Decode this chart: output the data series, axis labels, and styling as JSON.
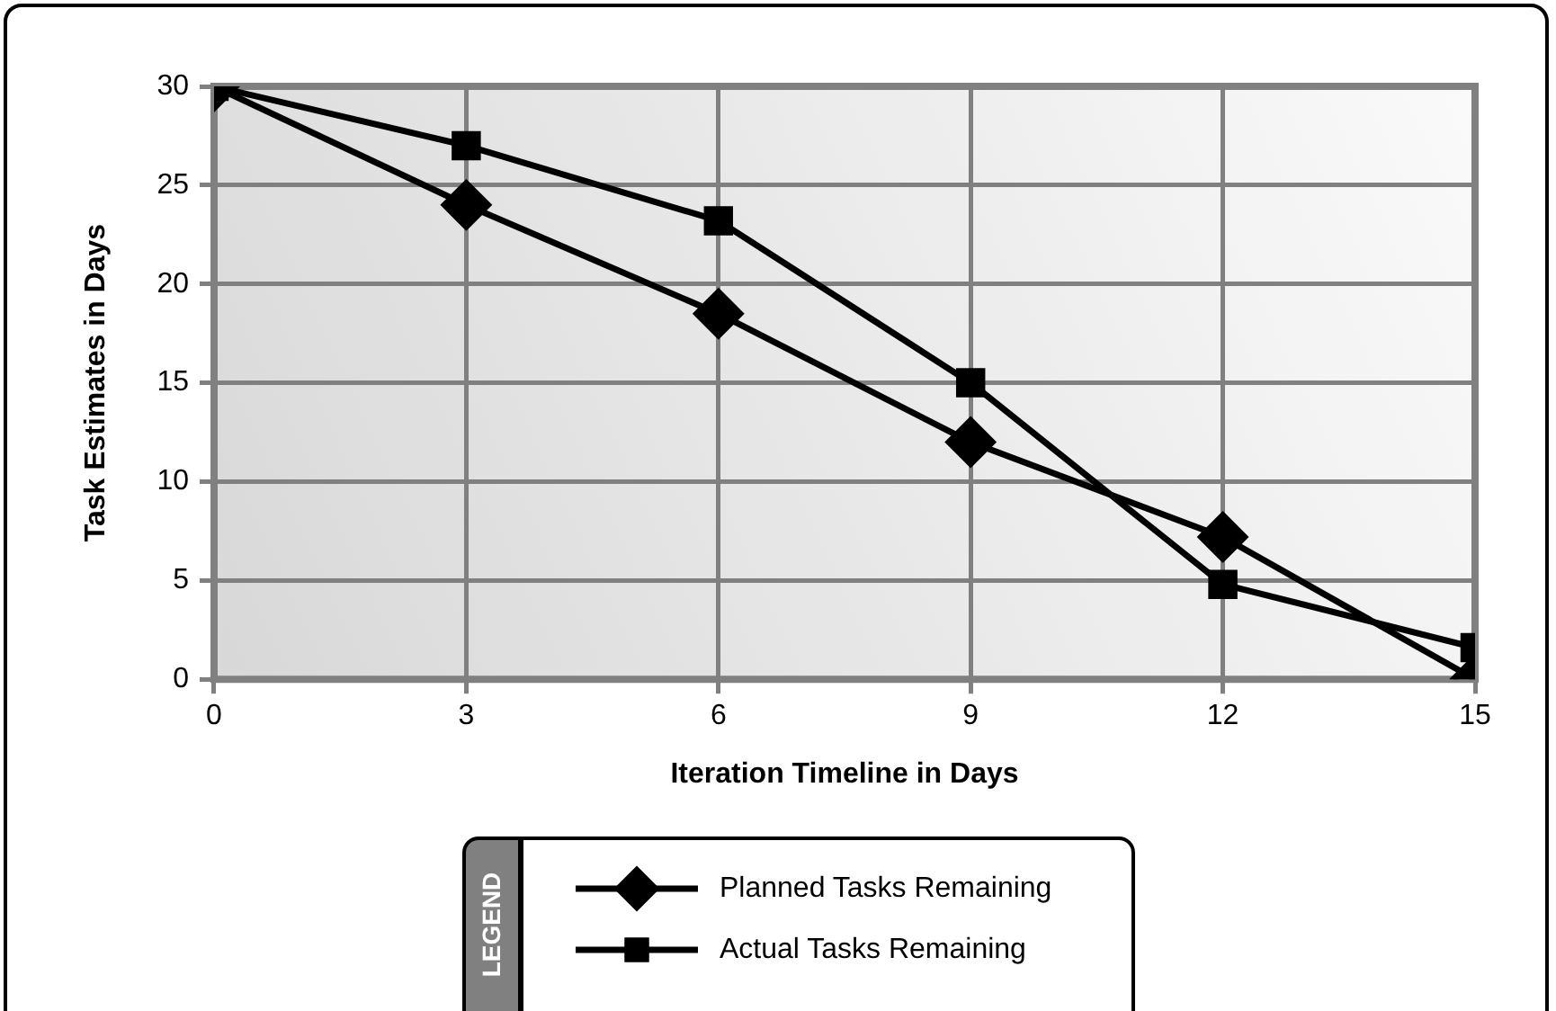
{
  "chart_data": {
    "type": "line",
    "xlabel": "Iteration Timeline in Days",
    "ylabel": "Task Estimates in Days",
    "legend_title": "LEGEND",
    "x": [
      0,
      3,
      6,
      9,
      12,
      15
    ],
    "series": [
      {
        "name": "Planned Tasks Remaining",
        "color": "#000000",
        "marker": "diamond",
        "values": [
          30,
          24,
          18.5,
          12,
          7.2,
          0
        ]
      },
      {
        "name": "Actual Tasks Remaining",
        "color": "#000000",
        "marker": "square",
        "values": [
          30,
          27,
          23.2,
          15,
          4.8,
          1.6
        ]
      }
    ],
    "xlim": [
      0,
      15
    ],
    "xticks": [
      0,
      3,
      6,
      9,
      12,
      15
    ],
    "ylim": [
      0,
      30
    ],
    "yticks": [
      0,
      5,
      10,
      15,
      20,
      25,
      30
    ],
    "grid": true,
    "legend": "bottom",
    "line_style": "solid"
  }
}
